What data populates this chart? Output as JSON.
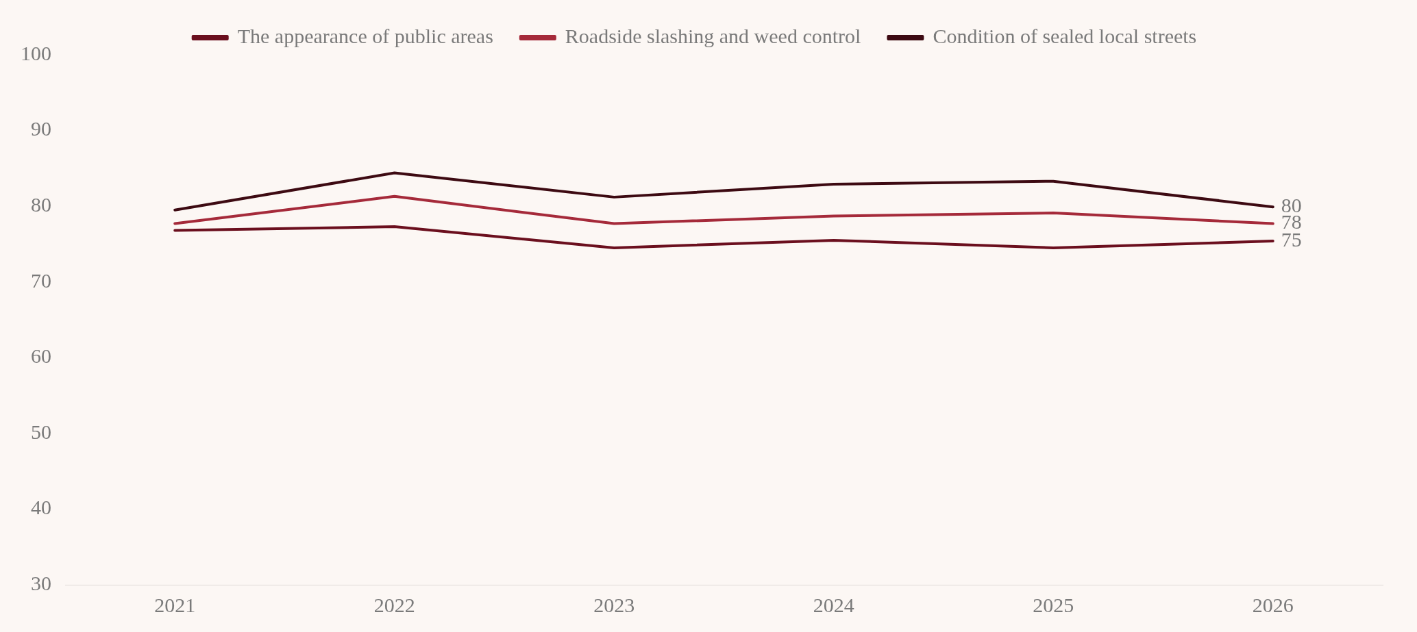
{
  "chart_data": {
    "type": "line",
    "categories": [
      "2021",
      "2022",
      "2023",
      "2024",
      "2025",
      "2026"
    ],
    "series": [
      {
        "name": "The appearance of public areas",
        "color": "#6b0f1e",
        "values": [
          76.8,
          77.3,
          74.5,
          75.5,
          74.5,
          75.4
        ],
        "value_labels": [
          null,
          null,
          null,
          null,
          null,
          "75"
        ]
      },
      {
        "name": "Roadside slashing and weed control",
        "color": "#a52a3a",
        "values": [
          77.7,
          81.3,
          77.7,
          78.7,
          79.1,
          77.7
        ],
        "value_labels": [
          null,
          null,
          null,
          null,
          null,
          "78"
        ]
      },
      {
        "name": "Condition of sealed local streets",
        "color": "#3d0a12",
        "values": [
          79.5,
          84.4,
          81.2,
          82.9,
          83.3,
          79.9
        ],
        "value_labels": [
          null,
          null,
          null,
          null,
          null,
          "80"
        ]
      }
    ],
    "ylim": [
      30,
      100
    ],
    "yticks": [
      30,
      40,
      50,
      60,
      70,
      80,
      90,
      100
    ],
    "grid": false,
    "legend": "top",
    "marker": "none",
    "line_style": "solid"
  }
}
